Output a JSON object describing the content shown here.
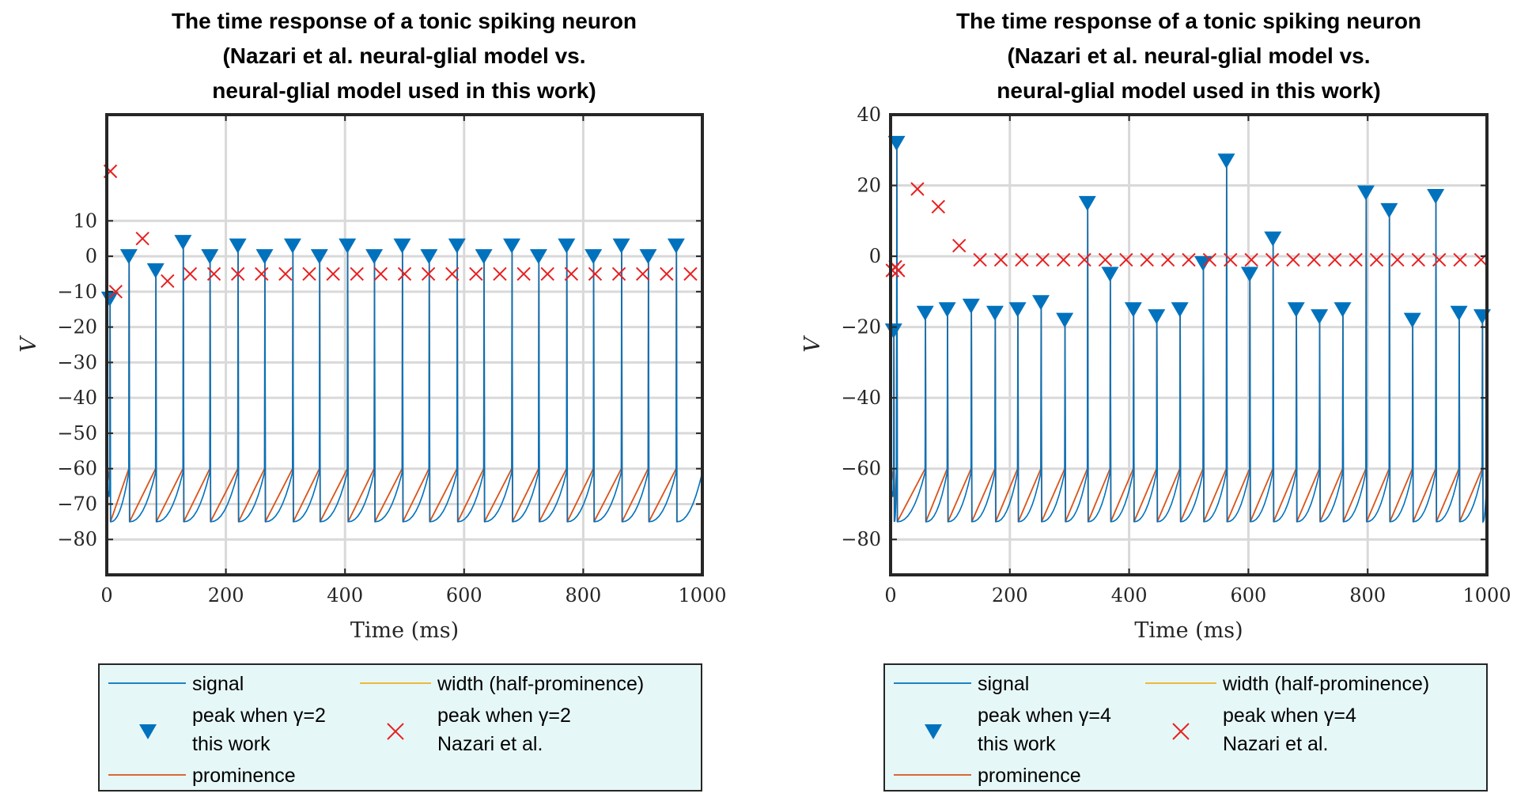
{
  "chart_data": [
    {
      "type": "line",
      "title_lines": [
        "The time response of a tonic spiking neuron",
        "(Nazari et al. neural-glial model vs.",
        "neural-glial model used in this work)"
      ],
      "xlabel": "Time (ms)",
      "ylabel": "V",
      "xlim": [
        0,
        1000
      ],
      "ylim": [
        -90,
        40
      ],
      "xticks": [
        0,
        200,
        400,
        600,
        800,
        1000
      ],
      "yticks": [
        -80,
        -70,
        -60,
        -50,
        -40,
        -30,
        -20,
        -10,
        0,
        10
      ],
      "grid": true,
      "legend_position": "bottom-outside",
      "legend": [
        "signal",
        "width (half-prominence)",
        "peak when γ=2\nthis work",
        "peak when γ=2\nNazari et al.",
        "prominence"
      ],
      "series": [
        {
          "name": "peak when γ=2\nthis work",
          "marker": "triangle-down",
          "color": "#0072BD",
          "x": [
            5,
            37,
            82,
            128,
            173,
            220,
            265,
            312,
            357,
            404,
            449,
            496,
            541,
            588,
            633,
            680,
            725,
            772,
            817,
            864,
            909,
            956
          ],
          "y": [
            -12,
            0,
            -4,
            4,
            0,
            3,
            0,
            3,
            0,
            3,
            0,
            3,
            0,
            3,
            0,
            3,
            0,
            3,
            0,
            3,
            0,
            3
          ]
        },
        {
          "name": "peak when γ=2\nNazari et al.",
          "marker": "x",
          "color": "#E82020",
          "x": [
            6,
            15,
            60,
            102,
            140,
            180,
            220,
            260,
            300,
            340,
            380,
            420,
            460,
            500,
            540,
            580,
            620,
            660,
            700,
            740,
            780,
            820,
            860,
            900,
            940,
            980
          ],
          "y": [
            24,
            -10,
            5,
            -7,
            -5,
            -5,
            -5,
            -5,
            -5,
            -5,
            -5,
            -5,
            -5,
            -5,
            -5,
            -5,
            -5,
            -5,
            -5,
            -5,
            -5,
            -5,
            -5,
            -5,
            -5,
            -5
          ]
        }
      ]
    },
    {
      "type": "line",
      "title_lines": [
        "The time response of a tonic spiking neuron",
        "(Nazari et al. neural-glial model vs.",
        "neural-glial model used in this work)"
      ],
      "xlabel": "Time (ms)",
      "ylabel": "V",
      "xlim": [
        0,
        1000
      ],
      "ylim": [
        -90,
        40
      ],
      "xticks": [
        0,
        200,
        400,
        600,
        800,
        1000
      ],
      "yticks": [
        -80,
        -60,
        -40,
        -20,
        0,
        20,
        40
      ],
      "grid": true,
      "legend_position": "bottom-outside",
      "legend": [
        "signal",
        "width (half-prominence)",
        "peak when γ=4\nthis work",
        "peak when γ=4\nNazari et al.",
        "prominence"
      ],
      "series": [
        {
          "name": "peak when γ=4\nthis work",
          "marker": "triangle-down",
          "color": "#0072BD",
          "x": [
            5,
            10,
            58,
            95,
            135,
            175,
            213,
            252,
            292,
            330,
            368,
            407,
            446,
            485,
            524,
            563,
            602,
            641,
            680,
            719,
            758,
            797,
            836,
            875,
            914,
            953,
            992
          ],
          "y": [
            -21,
            32,
            -16,
            -15,
            -14,
            -16,
            -15,
            -13,
            -18,
            15,
            -5,
            -15,
            -17,
            -15,
            -2,
            27,
            -5,
            5,
            -15,
            -17,
            -15,
            18,
            13,
            -18,
            17,
            -16,
            -17
          ]
        },
        {
          "name": "peak when γ=4\nNazari et al.",
          "marker": "x",
          "color": "#E82020",
          "x": [
            3,
            8,
            13,
            45,
            80,
            115,
            150,
            185,
            220,
            255,
            290,
            325,
            360,
            395,
            430,
            465,
            500,
            535,
            570,
            605,
            640,
            675,
            710,
            745,
            780,
            815,
            850,
            885,
            920,
            955,
            990
          ],
          "y": [
            -4,
            -3,
            -4,
            19,
            14,
            3,
            -1,
            -1,
            -1,
            -1,
            -1,
            -1,
            -1,
            -1,
            -1,
            -1,
            -1,
            -1,
            -1,
            -1,
            -1,
            -1,
            -1,
            -1,
            -1,
            -1,
            -1,
            -1,
            -1,
            -1,
            -1
          ]
        }
      ]
    }
  ]
}
